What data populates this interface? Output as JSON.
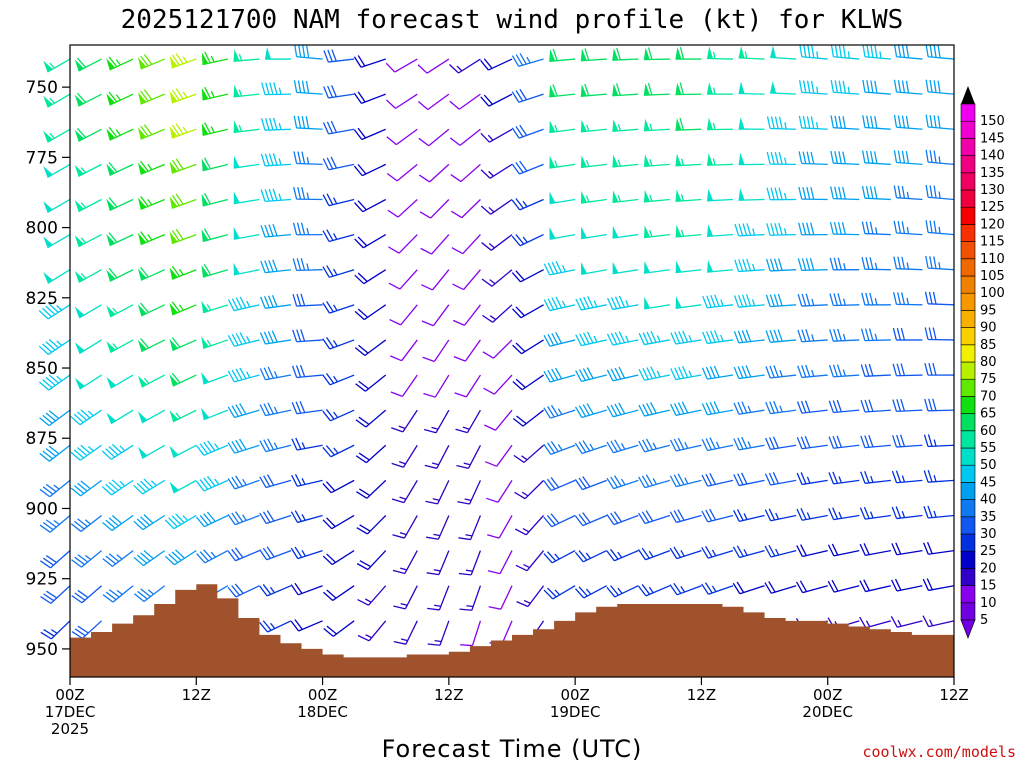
{
  "chart_data": {
    "type": "wind-barb time-height",
    "title": "2025121700 NAM forecast wind profile (kt) for KLWS",
    "xlabel": "Forecast Time (UTC)",
    "ylabel": "",
    "credit": "coolwx.com/models",
    "xlim_hours": [
      0,
      84
    ],
    "ylim_hpa": [
      960,
      735
    ],
    "x_ticks": [
      {
        "hour": 0,
        "lines": [
          "00Z",
          "17DEC",
          "2025"
        ]
      },
      {
        "hour": 12,
        "lines": [
          "12Z"
        ]
      },
      {
        "hour": 24,
        "lines": [
          "00Z",
          "18DEC"
        ]
      },
      {
        "hour": 36,
        "lines": [
          "12Z"
        ]
      },
      {
        "hour": 48,
        "lines": [
          "00Z",
          "19DEC"
        ]
      },
      {
        "hour": 60,
        "lines": [
          "12Z"
        ]
      },
      {
        "hour": 72,
        "lines": [
          "00Z",
          "20DEC"
        ]
      },
      {
        "hour": 84,
        "lines": [
          "12Z"
        ]
      }
    ],
    "y_ticks": [
      {
        "p": 750,
        "label": "750"
      },
      {
        "p": 775,
        "label": "775"
      },
      {
        "p": 800,
        "label": "800"
      },
      {
        "p": 825,
        "label": "825"
      },
      {
        "p": 850,
        "label": "850"
      },
      {
        "p": 875,
        "label": "875"
      },
      {
        "p": 900,
        "label": "900"
      },
      {
        "p": 925,
        "label": "925"
      },
      {
        "p": 950,
        "label": "950"
      }
    ],
    "colorbar": {
      "units": "kt",
      "labels": [
        "5",
        "10",
        "15",
        "20",
        "25",
        "30",
        "35",
        "40",
        "45",
        "50",
        "55",
        "60",
        "65",
        "70",
        "75",
        "80",
        "85",
        "90",
        "95",
        "100",
        "105",
        "110",
        "115",
        "120",
        "125",
        "130",
        "135",
        "140",
        "145",
        "150"
      ],
      "colors": [
        "#7000e0",
        "#8800ee",
        "#3000c8",
        "#0000c8",
        "#0030e0",
        "#1058f0",
        "#1078f0",
        "#00a0f0",
        "#00c8f0",
        "#00e0c8",
        "#00e8a0",
        "#00e060",
        "#10e010",
        "#60e800",
        "#b8f000",
        "#f0f000",
        "#f8d000",
        "#f8b000",
        "#f89800",
        "#f08000",
        "#f06800",
        "#f05000",
        "#f83000",
        "#f80000",
        "#f00040",
        "#f00060",
        "#f00080",
        "#f000a8",
        "#f000d0",
        "#f000f0"
      ]
    },
    "terrain_hpa": [
      {
        "hour": 0,
        "p": 946
      },
      {
        "hour": 2,
        "p": 944
      },
      {
        "hour": 4,
        "p": 941
      },
      {
        "hour": 6,
        "p": 938
      },
      {
        "hour": 8,
        "p": 934
      },
      {
        "hour": 10,
        "p": 929
      },
      {
        "hour": 12,
        "p": 927
      },
      {
        "hour": 14,
        "p": 932
      },
      {
        "hour": 16,
        "p": 939
      },
      {
        "hour": 18,
        "p": 945
      },
      {
        "hour": 20,
        "p": 948
      },
      {
        "hour": 22,
        "p": 950
      },
      {
        "hour": 24,
        "p": 952
      },
      {
        "hour": 26,
        "p": 953
      },
      {
        "hour": 28,
        "p": 953
      },
      {
        "hour": 32,
        "p": 952
      },
      {
        "hour": 36,
        "p": 951
      },
      {
        "hour": 38,
        "p": 949
      },
      {
        "hour": 40,
        "p": 947
      },
      {
        "hour": 42,
        "p": 945
      },
      {
        "hour": 44,
        "p": 943
      },
      {
        "hour": 46,
        "p": 940
      },
      {
        "hour": 48,
        "p": 937
      },
      {
        "hour": 50,
        "p": 935
      },
      {
        "hour": 52,
        "p": 934
      },
      {
        "hour": 56,
        "p": 934
      },
      {
        "hour": 60,
        "p": 934
      },
      {
        "hour": 62,
        "p": 935
      },
      {
        "hour": 64,
        "p": 937
      },
      {
        "hour": 66,
        "p": 939
      },
      {
        "hour": 68,
        "p": 940
      },
      {
        "hour": 70,
        "p": 940
      },
      {
        "hour": 72,
        "p": 941
      },
      {
        "hour": 74,
        "p": 942
      },
      {
        "hour": 76,
        "p": 943
      },
      {
        "hour": 78,
        "p": 944
      },
      {
        "hour": 80,
        "p": 945
      },
      {
        "hour": 84,
        "p": 946
      }
    ],
    "wind_profile_hours": [
      0,
      12,
      18,
      24,
      33,
      38,
      44,
      48,
      60,
      72,
      84
    ],
    "wind_profile_levels": [
      740,
      800,
      850,
      900,
      950
    ],
    "wind_profiles": [
      {
        "hour": 0,
        "dir": [
          240,
          240,
          235,
          230,
          225
        ],
        "kt": [
          55,
          50,
          45,
          35,
          25
        ]
      },
      {
        "hour": 12,
        "dir": [
          250,
          250,
          245,
          240,
          230
        ],
        "kt": [
          75,
          70,
          60,
          45,
          30
        ]
      },
      {
        "hour": 18,
        "dir": [
          265,
          260,
          255,
          250,
          240
        ],
        "kt": [
          55,
          50,
          45,
          35,
          25
        ]
      },
      {
        "hour": 24,
        "dir": [
          275,
          270,
          265,
          255,
          245
        ],
        "kt": [
          40,
          35,
          30,
          25,
          20
        ]
      },
      {
        "hour": 33,
        "dir": [
          240,
          225,
          215,
          210,
          205
        ],
        "kt": [
          10,
          10,
          12,
          15,
          15
        ]
      },
      {
        "hour": 38,
        "dir": [
          235,
          220,
          210,
          200,
          195
        ],
        "kt": [
          10,
          10,
          12,
          15,
          12
        ]
      },
      {
        "hour": 44,
        "dir": [
          250,
          240,
          230,
          215,
          205
        ],
        "kt": [
          25,
          15,
          12,
          10,
          10
        ]
      },
      {
        "hour": 48,
        "dir": [
          265,
          260,
          255,
          245,
          235
        ],
        "kt": [
          60,
          50,
          40,
          30,
          20
        ]
      },
      {
        "hour": 60,
        "dir": [
          270,
          265,
          260,
          255,
          245
        ],
        "kt": [
          60,
          55,
          45,
          30,
          20
        ]
      },
      {
        "hour": 72,
        "dir": [
          275,
          270,
          265,
          260,
          250
        ],
        "kt": [
          45,
          40,
          35,
          25,
          15
        ]
      },
      {
        "hour": 84,
        "dir": [
          275,
          275,
          270,
          265,
          255
        ],
        "kt": [
          40,
          35,
          30,
          25,
          15
        ]
      }
    ]
  }
}
